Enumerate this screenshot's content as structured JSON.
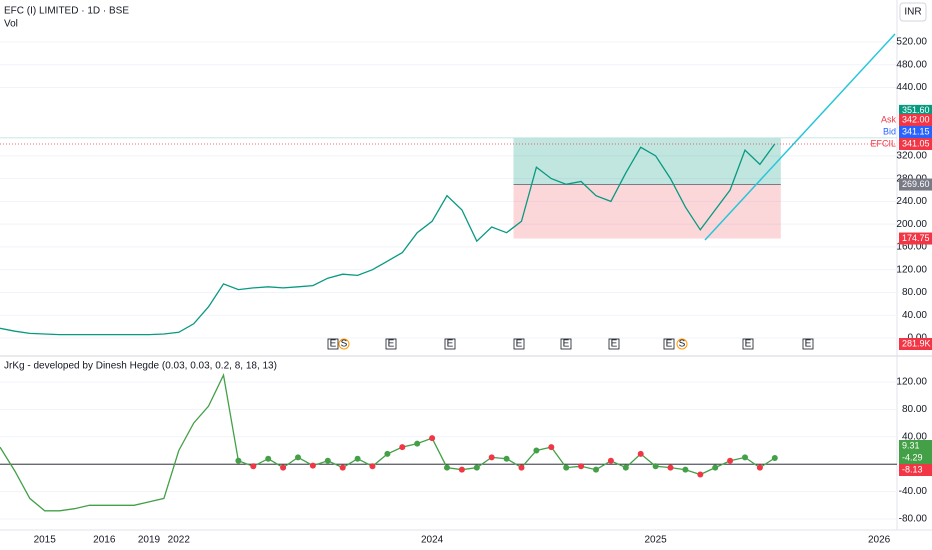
{
  "header": {
    "symbol": "EFC (I) LIMITED · 1D · BSE",
    "volume_label": "Vol",
    "currency": "INR",
    "indicator": "JrKg - developed by Dinesh Hegde (0.03, 0.03, 0.2, 8, 18, 13)"
  },
  "chart_data": [
    {
      "type": "line",
      "categories": [
        null,
        null,
        null,
        "2015",
        null,
        null,
        null,
        "2016",
        null,
        null,
        "2019",
        null,
        "2022",
        null,
        null,
        null,
        null,
        null,
        null,
        null,
        null,
        null,
        null,
        null,
        null,
        null,
        null,
        null,
        null,
        "2024",
        null,
        null,
        null,
        null,
        null,
        null,
        null,
        null,
        null,
        null,
        null,
        null,
        null,
        null,
        "2025",
        null,
        null,
        null,
        null,
        null,
        null,
        null,
        null,
        null,
        null,
        null,
        null,
        null,
        null,
        "2026"
      ],
      "series": [
        {
          "name": "EFCIL",
          "color": "#089981",
          "values": [
            17,
            12,
            8,
            7,
            6,
            6,
            6,
            6,
            6,
            6,
            6,
            7,
            10,
            25,
            55,
            95,
            85,
            88,
            90,
            88,
            90,
            92,
            105,
            112,
            110,
            120,
            135,
            150,
            185,
            205,
            250,
            225,
            170,
            195,
            185,
            205,
            300,
            280,
            270,
            275,
            250,
            240,
            290,
            335,
            320,
            280,
            230,
            190,
            225,
            260,
            330,
            305,
            341,
            null,
            null,
            null,
            null,
            null,
            null,
            null
          ]
        }
      ],
      "ylim": [
        0,
        520
      ],
      "yticks": [
        {
          "value": 0,
          "label": "0.00"
        },
        {
          "value": 40,
          "label": "40.00"
        },
        {
          "value": 80,
          "label": "80.00"
        },
        {
          "value": 120,
          "label": "120.00"
        },
        {
          "value": 160,
          "label": "160.00"
        },
        {
          "value": 200,
          "label": "200.00"
        },
        {
          "value": 240,
          "label": "240.00"
        },
        {
          "value": 280,
          "label": "280.00"
        },
        {
          "value": 320,
          "label": "320.00"
        },
        {
          "value": 440,
          "label": "440.00"
        },
        {
          "value": 480,
          "label": "480.00"
        },
        {
          "value": 520,
          "label": "520.00"
        }
      ],
      "zone": {
        "start": 35,
        "end": 52,
        "target": 351.6,
        "entry": 269.6,
        "stop": 174.75,
        "target_label": "351.60",
        "entry_label": "269.60",
        "stop_label": "174.75"
      },
      "price_tags": [
        {
          "name": "Ask",
          "value": 342,
          "label": "342.00",
          "color": "#f23645"
        },
        {
          "name": "Bid",
          "value": 341.15,
          "label": "341.15",
          "color": "#2962ff"
        },
        {
          "name": "EFCIL",
          "value": 341.05,
          "label": "341.05",
          "color": "#f23645"
        }
      ],
      "volume_tag": "281.9K",
      "events": [
        "E",
        "S",
        "E",
        "E",
        "E",
        "E",
        "E",
        "E",
        "S",
        "E",
        "E"
      ],
      "grid": true
    },
    {
      "type": "line",
      "series": [
        {
          "name": "JrKg",
          "color": "#43a047",
          "values": [
            25,
            -10,
            -50,
            -68,
            -68,
            -65,
            -60,
            -60,
            -60,
            -60,
            -55,
            -50,
            20,
            60,
            85,
            130,
            5,
            -3,
            8,
            -5,
            10,
            -2,
            5,
            -5,
            8,
            -3,
            15,
            25,
            30,
            38,
            -5,
            -8,
            -5,
            10,
            8,
            -5,
            20,
            25,
            -5,
            -3,
            -8,
            5,
            -5,
            15,
            -3,
            -5,
            -8,
            -15,
            -5,
            5,
            10,
            -5,
            9
          ]
        }
      ],
      "ylim": [
        -80,
        120
      ],
      "yticks": [
        {
          "value": -80,
          "label": "-80.00"
        },
        {
          "value": -40,
          "label": "-40.00"
        },
        {
          "value": 0,
          "label": "0.00"
        },
        {
          "value": 40,
          "label": "40.00"
        },
        {
          "value": 80,
          "label": "80.00"
        },
        {
          "value": 120,
          "label": "120.00"
        }
      ],
      "value_tags": [
        {
          "value": 9.31,
          "label": "9.31",
          "color": "#43a047"
        },
        {
          "value": -4.29,
          "label": "-4.29",
          "color": "#43a047"
        },
        {
          "value": -8.13,
          "label": "-8.13",
          "color": "#f23645"
        }
      ],
      "grid": true
    }
  ]
}
